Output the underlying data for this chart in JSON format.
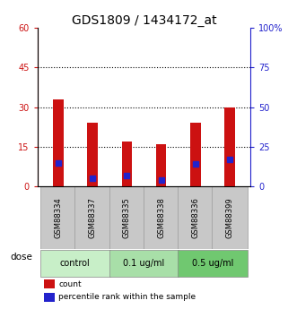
{
  "title": "GDS1809 / 1434172_at",
  "samples": [
    "GSM88334",
    "GSM88337",
    "GSM88335",
    "GSM88338",
    "GSM88336",
    "GSM88399"
  ],
  "red_counts": [
    33,
    24,
    17,
    16,
    24,
    30
  ],
  "blue_percentiles": [
    15,
    5,
    7,
    4,
    14,
    17
  ],
  "left_ylim": [
    0,
    60
  ],
  "right_ylim": [
    0,
    100
  ],
  "left_yticks": [
    0,
    15,
    30,
    45,
    60
  ],
  "right_yticks": [
    0,
    25,
    50,
    75,
    100
  ],
  "right_yticklabels": [
    "0",
    "25",
    "50",
    "75",
    "100%"
  ],
  "hlines": [
    15,
    30,
    45
  ],
  "groups": [
    {
      "label": "control",
      "indices": [
        0,
        1
      ],
      "color": "#c8efc8"
    },
    {
      "label": "0.1 ug/ml",
      "indices": [
        2,
        3
      ],
      "color": "#a8dfa8"
    },
    {
      "label": "0.5 ug/ml",
      "indices": [
        4,
        5
      ],
      "color": "#70c870"
    }
  ],
  "dose_label": "dose",
  "bar_color": "#cc1111",
  "blue_color": "#2222cc",
  "tick_bg_color": "#c8c8c8",
  "group_border_color": "#888888",
  "legend_count_label": "count",
  "legend_pct_label": "percentile rank within the sample",
  "bar_width": 0.55,
  "title_fontsize": 10,
  "tick_fontsize": 7,
  "label_fontsize": 7,
  "left_tick_color": "#cc1111",
  "right_tick_color": "#2222cc"
}
